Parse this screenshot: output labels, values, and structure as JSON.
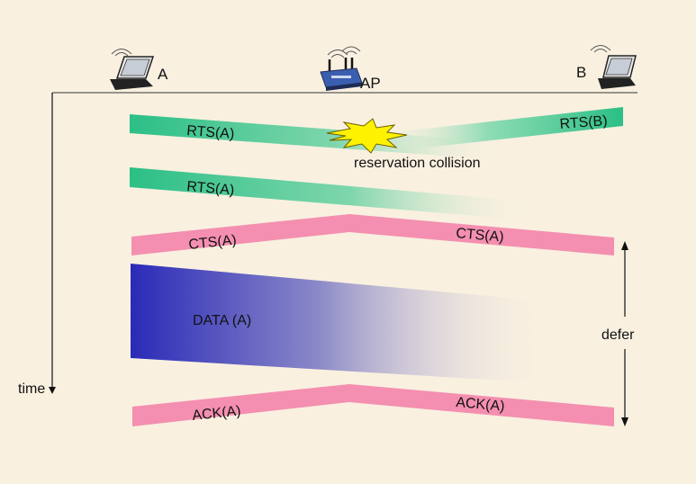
{
  "nodes": {
    "a": {
      "label": "A",
      "icon": "laptop-icon"
    },
    "ap": {
      "label": "AP",
      "icon": "wireless-router-icon"
    },
    "b": {
      "label": "B",
      "icon": "laptop-icon"
    }
  },
  "time_axis": {
    "label": "time"
  },
  "frames": {
    "rts_a_1": "RTS(A)",
    "rts_b": "RTS(B)",
    "collision": "reservation collision",
    "rts_a_2": "RTS(A)",
    "cts_left": "CTS(A)",
    "cts_right": "CTS(A)",
    "data": "DATA (A)",
    "ack_left": "ACK(A)",
    "ack_right": "ACK(A)"
  },
  "defer": {
    "label": "defer"
  },
  "colors": {
    "background": "#f9f0e0",
    "rts": "#33c08a",
    "cts_ack": "#f48fb1",
    "data": "#2a2ab8",
    "collision": "#fff200"
  }
}
